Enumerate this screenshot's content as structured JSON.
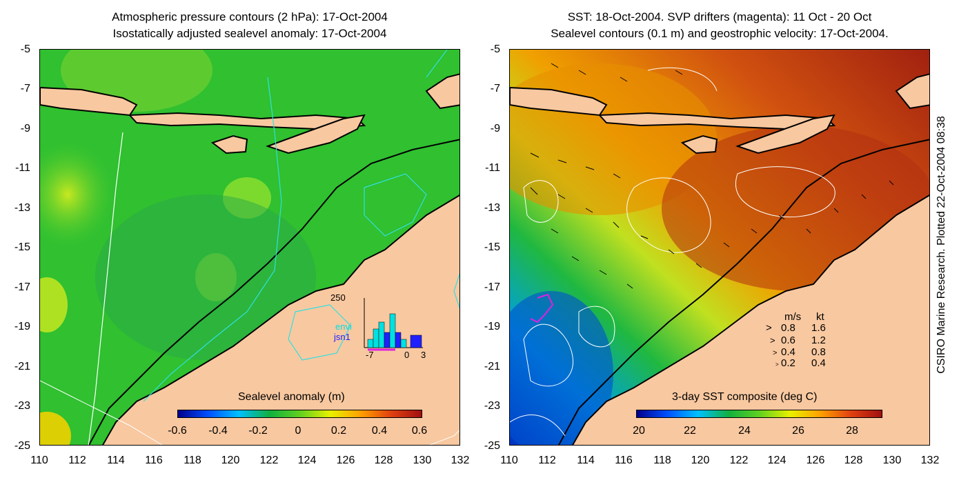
{
  "left_panel": {
    "title_line1": "Atmospheric pressure contours (2 hPa): 17-Oct-2004",
    "title_line2": "Isostatically adjusted sealevel anomaly: 17-Oct-2004",
    "colorbar_label": "Sealevel anomaly (m)",
    "colorbar_ticks": [
      "-0.6",
      "-0.4",
      "-0.2",
      "0",
      "0.2",
      "0.4",
      "0.6"
    ],
    "colors": [
      "#00008b",
      "#0050ff",
      "#00c0ff",
      "#10b040",
      "#60d020",
      "#e8f000",
      "#ffa000",
      "#e04010",
      "#a01010"
    ],
    "inset": {
      "ymax_label": "250",
      "legend": [
        "envi",
        "jsn1"
      ],
      "legend_colors": [
        "#00e0e0",
        "#2020ff"
      ],
      "x_ticks": [
        "-7",
        "0",
        "3"
      ]
    }
  },
  "right_panel": {
    "title_line1": "SST: 18-Oct-2004. SVP drifters (magenta): 11 Oct - 20 Oct",
    "title_line2": "Sealevel contours (0.1 m) and geostrophic velocity: 17-Oct-2004.",
    "colorbar_label": "3-day SST composite (deg C)",
    "colorbar_ticks": [
      "20",
      "22",
      "24",
      "26",
      "28"
    ],
    "colors": [
      "#00008b",
      "#0050ff",
      "#00c0ff",
      "#10b040",
      "#60d020",
      "#e8f000",
      "#ffa000",
      "#e04010",
      "#a01010"
    ],
    "velocity_legend": {
      "header_ms": "m/s",
      "header_kt": "kt",
      "rows": [
        {
          "ms": "0.8",
          "kt": "1.6"
        },
        {
          "ms": "0.6",
          "kt": "1.2"
        },
        {
          "ms": "0.4",
          "kt": "0.8"
        },
        {
          "ms": "0.2",
          "kt": "0.4"
        }
      ]
    }
  },
  "y_ticks": [
    "-5",
    "-7",
    "-9",
    "-11",
    "-13",
    "-15",
    "-17",
    "-19",
    "-21",
    "-23",
    "-25"
  ],
  "x_ticks": [
    "110",
    "112",
    "114",
    "116",
    "118",
    "120",
    "122",
    "124",
    "126",
    "128",
    "130",
    "132"
  ],
  "side_note": "CSIRO Marine Research. Plotted 22-Oct-2004 08:38",
  "land_color": "#f8c8a0"
}
